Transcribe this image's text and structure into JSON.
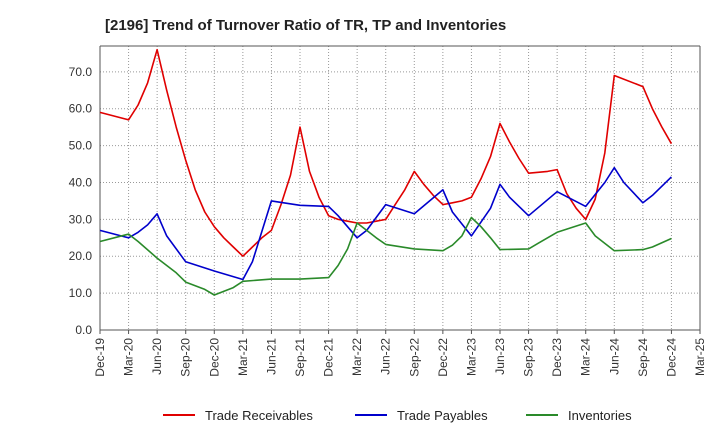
{
  "chart_data": {
    "type": "line",
    "title": "[2196]  Trend of Turnover Ratio of TR, TP and Inventories",
    "xlabel": "",
    "ylabel": "",
    "ylim": [
      0,
      77
    ],
    "yticks": [
      0,
      10,
      20,
      30,
      40,
      50,
      60,
      70
    ],
    "ytick_labels": [
      "0.0",
      "10.0",
      "20.0",
      "30.0",
      "40.0",
      "50.0",
      "60.0",
      "70.0"
    ],
    "x_tick_labels": [
      "Dec-19",
      "Mar-20",
      "Jun-20",
      "Sep-20",
      "Dec-20",
      "Mar-21",
      "Jun-21",
      "Sep-21",
      "Dec-21",
      "Mar-22",
      "Jun-22",
      "Sep-22",
      "Dec-22",
      "Mar-23",
      "Jun-23",
      "Sep-23",
      "Dec-23",
      "Mar-24",
      "Jun-24",
      "Sep-24",
      "Dec-24",
      "Mar-25"
    ],
    "x_range_months": [
      0,
      63
    ],
    "grid": "dotted, both axes",
    "legend_position": "bottom",
    "series": [
      {
        "name": "Trade Receivables",
        "color": "#e00000",
        "points": [
          [
            0,
            59.0
          ],
          [
            3,
            57.0
          ],
          [
            4,
            61.0
          ],
          [
            5,
            67.0
          ],
          [
            6,
            76.0
          ],
          [
            7,
            65.0
          ],
          [
            8,
            55.0
          ],
          [
            9,
            46.0
          ],
          [
            10,
            38.0
          ],
          [
            11,
            32.0
          ],
          [
            12,
            28.0
          ],
          [
            13,
            25.0
          ],
          [
            14,
            22.5
          ],
          [
            15,
            20.0
          ],
          [
            16,
            22.5
          ],
          [
            17,
            25.0
          ],
          [
            18,
            27.0
          ],
          [
            19,
            34.0
          ],
          [
            20,
            42.0
          ],
          [
            21,
            55.0
          ],
          [
            22,
            43.0
          ],
          [
            23,
            36.0
          ],
          [
            24,
            31.0
          ],
          [
            25,
            30.0
          ],
          [
            26,
            29.5
          ],
          [
            27,
            29.0
          ],
          [
            28,
            29.0
          ],
          [
            29,
            29.5
          ],
          [
            30,
            30.0
          ],
          [
            31,
            34.0
          ],
          [
            32,
            38.0
          ],
          [
            33,
            43.0
          ],
          [
            34,
            39.5
          ],
          [
            35,
            36.5
          ],
          [
            36,
            34.0
          ],
          [
            37,
            34.5
          ],
          [
            38,
            35.0
          ],
          [
            39,
            36.0
          ],
          [
            40,
            41.0
          ],
          [
            41,
            47.0
          ],
          [
            42,
            56.0
          ],
          [
            43,
            51.0
          ],
          [
            44,
            46.5
          ],
          [
            45,
            42.5
          ],
          [
            47,
            43.0
          ],
          [
            48,
            43.5
          ],
          [
            49,
            37.0
          ],
          [
            50,
            33.0
          ],
          [
            51,
            30.0
          ],
          [
            52,
            35.5
          ],
          [
            53,
            48.0
          ],
          [
            54,
            69.0
          ],
          [
            57,
            66.0
          ],
          [
            58,
            60.0
          ],
          [
            59,
            55.0
          ],
          [
            60,
            50.5
          ]
        ]
      },
      {
        "name": "Trade Payables",
        "color": "#0000cc",
        "points": [
          [
            0,
            27.0
          ],
          [
            3,
            25.0
          ],
          [
            4,
            26.5
          ],
          [
            5,
            28.5
          ],
          [
            6,
            31.5
          ],
          [
            7,
            25.5
          ],
          [
            9,
            18.5
          ],
          [
            12,
            16.0
          ],
          [
            15,
            13.7
          ],
          [
            16,
            18.5
          ],
          [
            18,
            35.0
          ],
          [
            21,
            33.8
          ],
          [
            24,
            33.5
          ],
          [
            25,
            31.0
          ],
          [
            27,
            25.0
          ],
          [
            28,
            27.0
          ],
          [
            30,
            34.0
          ],
          [
            33,
            31.5
          ],
          [
            36,
            38.0
          ],
          [
            37,
            32.0
          ],
          [
            39,
            25.5
          ],
          [
            41,
            33.0
          ],
          [
            42,
            39.5
          ],
          [
            43,
            36.0
          ],
          [
            45,
            31.0
          ],
          [
            48,
            37.5
          ],
          [
            51,
            33.5
          ],
          [
            53,
            40.0
          ],
          [
            54,
            44.0
          ],
          [
            55,
            40.0
          ],
          [
            57,
            34.5
          ],
          [
            58,
            36.5
          ],
          [
            60,
            41.5
          ]
        ]
      },
      {
        "name": "Inventories",
        "color": "#2a8a2a",
        "points": [
          [
            0,
            24.0
          ],
          [
            3,
            26.0
          ],
          [
            4,
            24.0
          ],
          [
            6,
            19.5
          ],
          [
            8,
            15.5
          ],
          [
            9,
            13.0
          ],
          [
            11,
            11.0
          ],
          [
            12,
            9.5
          ],
          [
            14,
            11.5
          ],
          [
            15,
            13.2
          ],
          [
            18,
            13.8
          ],
          [
            21,
            13.8
          ],
          [
            24,
            14.2
          ],
          [
            25,
            17.5
          ],
          [
            26,
            22.0
          ],
          [
            27,
            29.0
          ],
          [
            28,
            27.0
          ],
          [
            29,
            25.0
          ],
          [
            30,
            23.2
          ],
          [
            33,
            22.0
          ],
          [
            36,
            21.5
          ],
          [
            37,
            23.0
          ],
          [
            38,
            25.5
          ],
          [
            39,
            30.5
          ],
          [
            40,
            28.0
          ],
          [
            41,
            25.0
          ],
          [
            42,
            21.8
          ],
          [
            45,
            22.0
          ],
          [
            46,
            23.5
          ],
          [
            48,
            26.5
          ],
          [
            51,
            29.0
          ],
          [
            52,
            25.5
          ],
          [
            54,
            21.5
          ],
          [
            57,
            21.8
          ],
          [
            58,
            22.5
          ],
          [
            60,
            24.8
          ]
        ]
      }
    ]
  }
}
